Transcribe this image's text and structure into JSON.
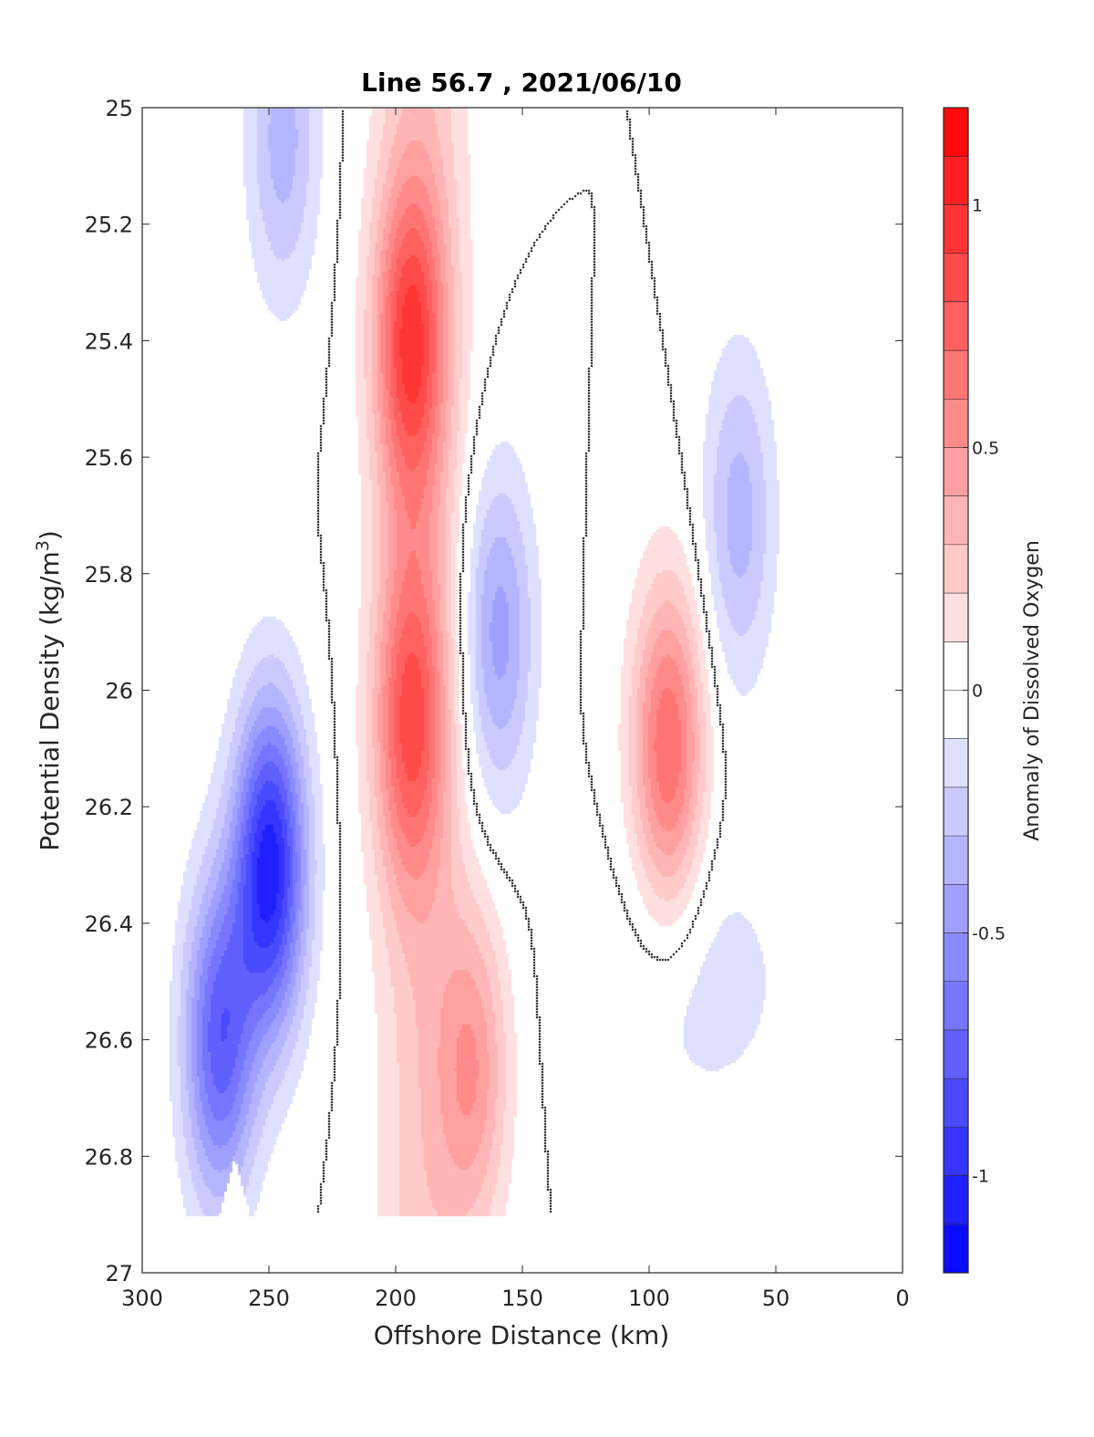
{
  "chart_data": {
    "type": "contour",
    "title": "Line 56.7 , 2021/06/10",
    "xlabel": "Offshore Distance (km)",
    "ylabel_main": "Potential Density (kg/m",
    "ylabel_sup": "3",
    "ylabel_close": ")",
    "colorbar_label": "Anomaly of Dissolved Oxygen",
    "xlim": [
      300,
      0
    ],
    "ylim": [
      25,
      27
    ],
    "y_reversed": true,
    "x_ticks": [
      300,
      250,
      200,
      150,
      100,
      50,
      0
    ],
    "x_tick_labels": [
      "300",
      "250",
      "200",
      "150",
      "100",
      "50",
      "0"
    ],
    "y_ticks": [
      25,
      25.2,
      25.4,
      25.6,
      25.8,
      26,
      26.2,
      26.4,
      26.6,
      26.8,
      27
    ],
    "y_tick_labels": [
      "25",
      "25.2",
      "25.4",
      "25.6",
      "25.8",
      "26",
      "26.2",
      "26.4",
      "26.6",
      "26.8",
      "27"
    ],
    "colorbar_range": [
      -1.2,
      1.2
    ],
    "colorbar_ticks": [
      1,
      0.5,
      0,
      -0.5,
      -1
    ],
    "colorbar_tick_labels": [
      "1",
      "0.5",
      "0",
      "-0.5",
      "-1"
    ],
    "contour_step": 0.1,
    "colormap": {
      "negative": "#0000ff",
      "zero": "#ffffff",
      "positive": "#ff0000"
    },
    "zero_contour_color": "#000000",
    "data_extent": {
      "y_bottom_by_x": [
        [
          300,
          26.8
        ],
        [
          285,
          26.9
        ],
        [
          270,
          26.9
        ],
        [
          264,
          26.8
        ],
        [
          258,
          26.9
        ],
        [
          60,
          26.9
        ],
        [
          40,
          26.65
        ],
        [
          25,
          26.45
        ],
        [
          15,
          26.4
        ],
        [
          5,
          26.1
        ]
      ]
    },
    "features": [
      {
        "name": "blue core upper",
        "x": 245,
        "y": 25.05,
        "value": -0.35
      },
      {
        "name": "blue core deep",
        "x": 250,
        "y": 26.3,
        "value": -1.05
      },
      {
        "name": "blue lobe deep",
        "x": 270,
        "y": 26.6,
        "value": -0.75
      },
      {
        "name": "red core upper",
        "x": 195,
        "y": 25.4,
        "value": 0.75
      },
      {
        "name": "red core mid",
        "x": 195,
        "y": 26.05,
        "value": 0.65
      },
      {
        "name": "red core right",
        "x": 93,
        "y": 26.1,
        "value": 0.7
      },
      {
        "name": "red core deep",
        "x": 170,
        "y": 26.65,
        "value": 0.45
      },
      {
        "name": "blue core center",
        "x": 160,
        "y": 25.9,
        "value": -0.45
      },
      {
        "name": "blue lens right",
        "x": 65,
        "y": 25.7,
        "value": -0.35
      }
    ]
  }
}
